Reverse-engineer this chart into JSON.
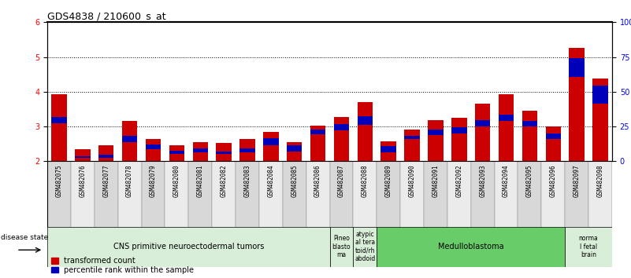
{
  "title": "GDS4838 / 210600_s_at",
  "samples": [
    "GSM482075",
    "GSM482076",
    "GSM482077",
    "GSM482078",
    "GSM482079",
    "GSM482080",
    "GSM482081",
    "GSM482082",
    "GSM482083",
    "GSM482084",
    "GSM482085",
    "GSM482086",
    "GSM482087",
    "GSM482088",
    "GSM482089",
    "GSM482090",
    "GSM482091",
    "GSM482092",
    "GSM482093",
    "GSM482094",
    "GSM482095",
    "GSM482096",
    "GSM482097",
    "GSM482098"
  ],
  "red_values": [
    3.93,
    2.35,
    2.45,
    3.15,
    2.65,
    2.45,
    2.55,
    2.52,
    2.63,
    2.85,
    2.55,
    3.03,
    3.28,
    3.7,
    2.57,
    2.9,
    3.18,
    3.25,
    3.65,
    3.93,
    3.45,
    3.0,
    5.27,
    4.38
  ],
  "blue_heights": [
    0.18,
    0.05,
    0.08,
    0.17,
    0.14,
    0.11,
    0.13,
    0.07,
    0.12,
    0.21,
    0.18,
    0.14,
    0.2,
    0.25,
    0.18,
    0.1,
    0.16,
    0.17,
    0.18,
    0.19,
    0.16,
    0.15,
    0.55,
    0.52
  ],
  "blue_bottoms": [
    3.1,
    2.1,
    2.1,
    2.55,
    2.35,
    2.2,
    2.25,
    2.2,
    2.25,
    2.45,
    2.27,
    2.78,
    2.88,
    3.05,
    2.25,
    2.63,
    2.75,
    2.8,
    3.0,
    3.15,
    3.0,
    2.65,
    4.42,
    3.65
  ],
  "ylim_left": [
    2,
    6
  ],
  "yticks_left": [
    2,
    3,
    4,
    5,
    6
  ],
  "yticks_right": [
    0,
    25,
    50,
    75,
    100
  ],
  "ytick_labels_right": [
    "0",
    "25",
    "50",
    "75",
    "100%"
  ],
  "bar_color_red": "#CC0000",
  "bar_color_blue": "#0000BB",
  "disease_groups": [
    {
      "label": "CNS primitive neuroectodermal tumors",
      "start": 0,
      "end": 12,
      "color": "#D8EED8"
    },
    {
      "label": "Pineo\nblasto\nma",
      "start": 12,
      "end": 13,
      "color": "#D8EED8"
    },
    {
      "label": "atypic\nal tera\ntoid/rh\nabdoid",
      "start": 13,
      "end": 14,
      "color": "#D8EED8"
    },
    {
      "label": "Medulloblastoma",
      "start": 14,
      "end": 22,
      "color": "#68CC68"
    },
    {
      "label": "norma\nl fetal\nbrain",
      "start": 22,
      "end": 24,
      "color": "#D8EED8"
    }
  ],
  "legend_labels": [
    "transformed count",
    "percentile rank within the sample"
  ],
  "disease_state_label": "disease state",
  "cell_colors": [
    "#D8D8D8",
    "#EBEBEB"
  ]
}
